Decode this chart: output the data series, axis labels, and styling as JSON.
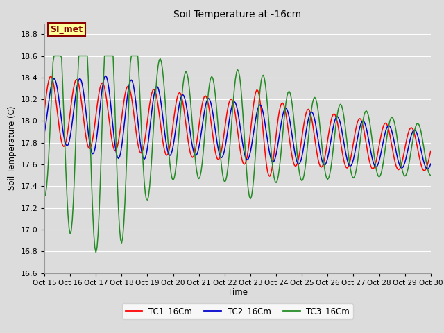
{
  "title": "Soil Temperature at -16cm",
  "ylabel": "Soil Temperature (C)",
  "xlabel": "Time",
  "ylim": [
    16.6,
    18.9
  ],
  "xlim_days": [
    0,
    15
  ],
  "background_color": "#dcdcdc",
  "plot_bg_color": "#dcdcdc",
  "grid_color": "#ffffff",
  "annotation_text": "SI_met",
  "annotation_bg": "#ffff99",
  "annotation_border": "#8b0000",
  "line_colors": [
    "#ff0000",
    "#0000cc",
    "#228B22"
  ],
  "line_labels": [
    "TC1_16Cm",
    "TC2_16Cm",
    "TC3_16Cm"
  ],
  "xtick_labels": [
    "Oct 15",
    "Oct 16",
    "Oct 17",
    "Oct 18",
    "Oct 19",
    "Oct 20",
    "Oct 21",
    "Oct 22",
    "Oct 23",
    "Oct 24",
    "Oct 25",
    "Oct 26",
    "Oct 27",
    "Oct 28",
    "Oct 29",
    "Oct 30"
  ],
  "n_per_day": 24,
  "n_days": 15
}
